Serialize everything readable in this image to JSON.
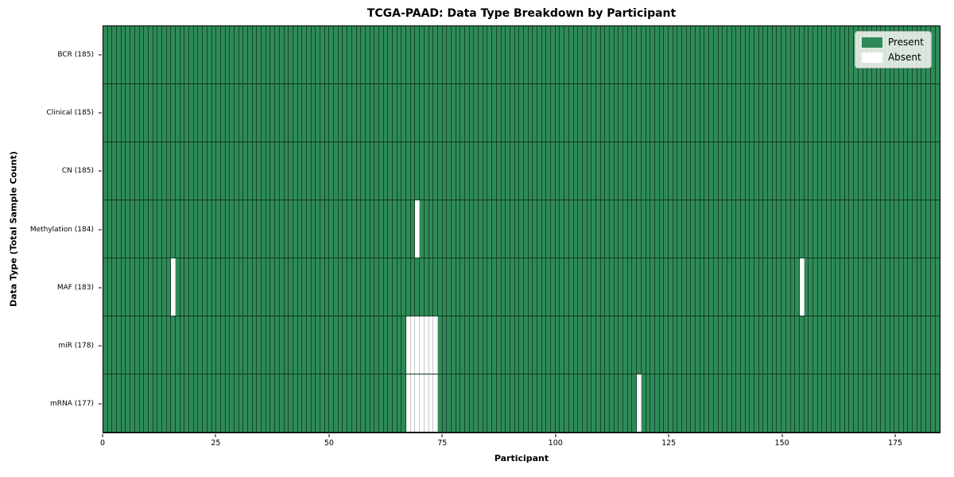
{
  "chart_data": {
    "type": "heatmap",
    "title": "TCGA-PAAD: Data Type Breakdown by Participant",
    "xlabel": "Participant",
    "ylabel": "Data Type (Total Sample Count)",
    "n_participants": 185,
    "x_range": [
      0,
      185
    ],
    "xticks": [
      0,
      25,
      50,
      75,
      100,
      125,
      150,
      175
    ],
    "grid": true,
    "legend_position": "upper right",
    "rows": [
      {
        "label": "BCR (185)",
        "data_type": "BCR",
        "present_count": 185,
        "absent_participants": []
      },
      {
        "label": "Clinical (185)",
        "data_type": "Clinical",
        "present_count": 185,
        "absent_participants": []
      },
      {
        "label": "CN (185)",
        "data_type": "CN",
        "present_count": 185,
        "absent_participants": []
      },
      {
        "label": "Methylation (184)",
        "data_type": "Methylation",
        "present_count": 184,
        "absent_participants": [
          69
        ]
      },
      {
        "label": "MAF (183)",
        "data_type": "MAF",
        "present_count": 183,
        "absent_participants": [
          15,
          154
        ]
      },
      {
        "label": "miR (178)",
        "data_type": "miR",
        "present_count": 178,
        "absent_participants": [
          67,
          68,
          69,
          70,
          71,
          72,
          73
        ]
      },
      {
        "label": "mRNA (177)",
        "data_type": "mRNA",
        "present_count": 177,
        "absent_participants": [
          67,
          68,
          69,
          70,
          71,
          72,
          73,
          118
        ]
      }
    ],
    "legend": [
      {
        "label": "Present",
        "color": "#2e8b57"
      },
      {
        "label": "Absent",
        "color": "#ffffff"
      }
    ],
    "colors": {
      "present": "#2e8b57",
      "absent": "#ffffff",
      "cell_edge": "rgba(0,0,0,0.5)",
      "spine": "#000000",
      "background": "#ffffff"
    }
  }
}
